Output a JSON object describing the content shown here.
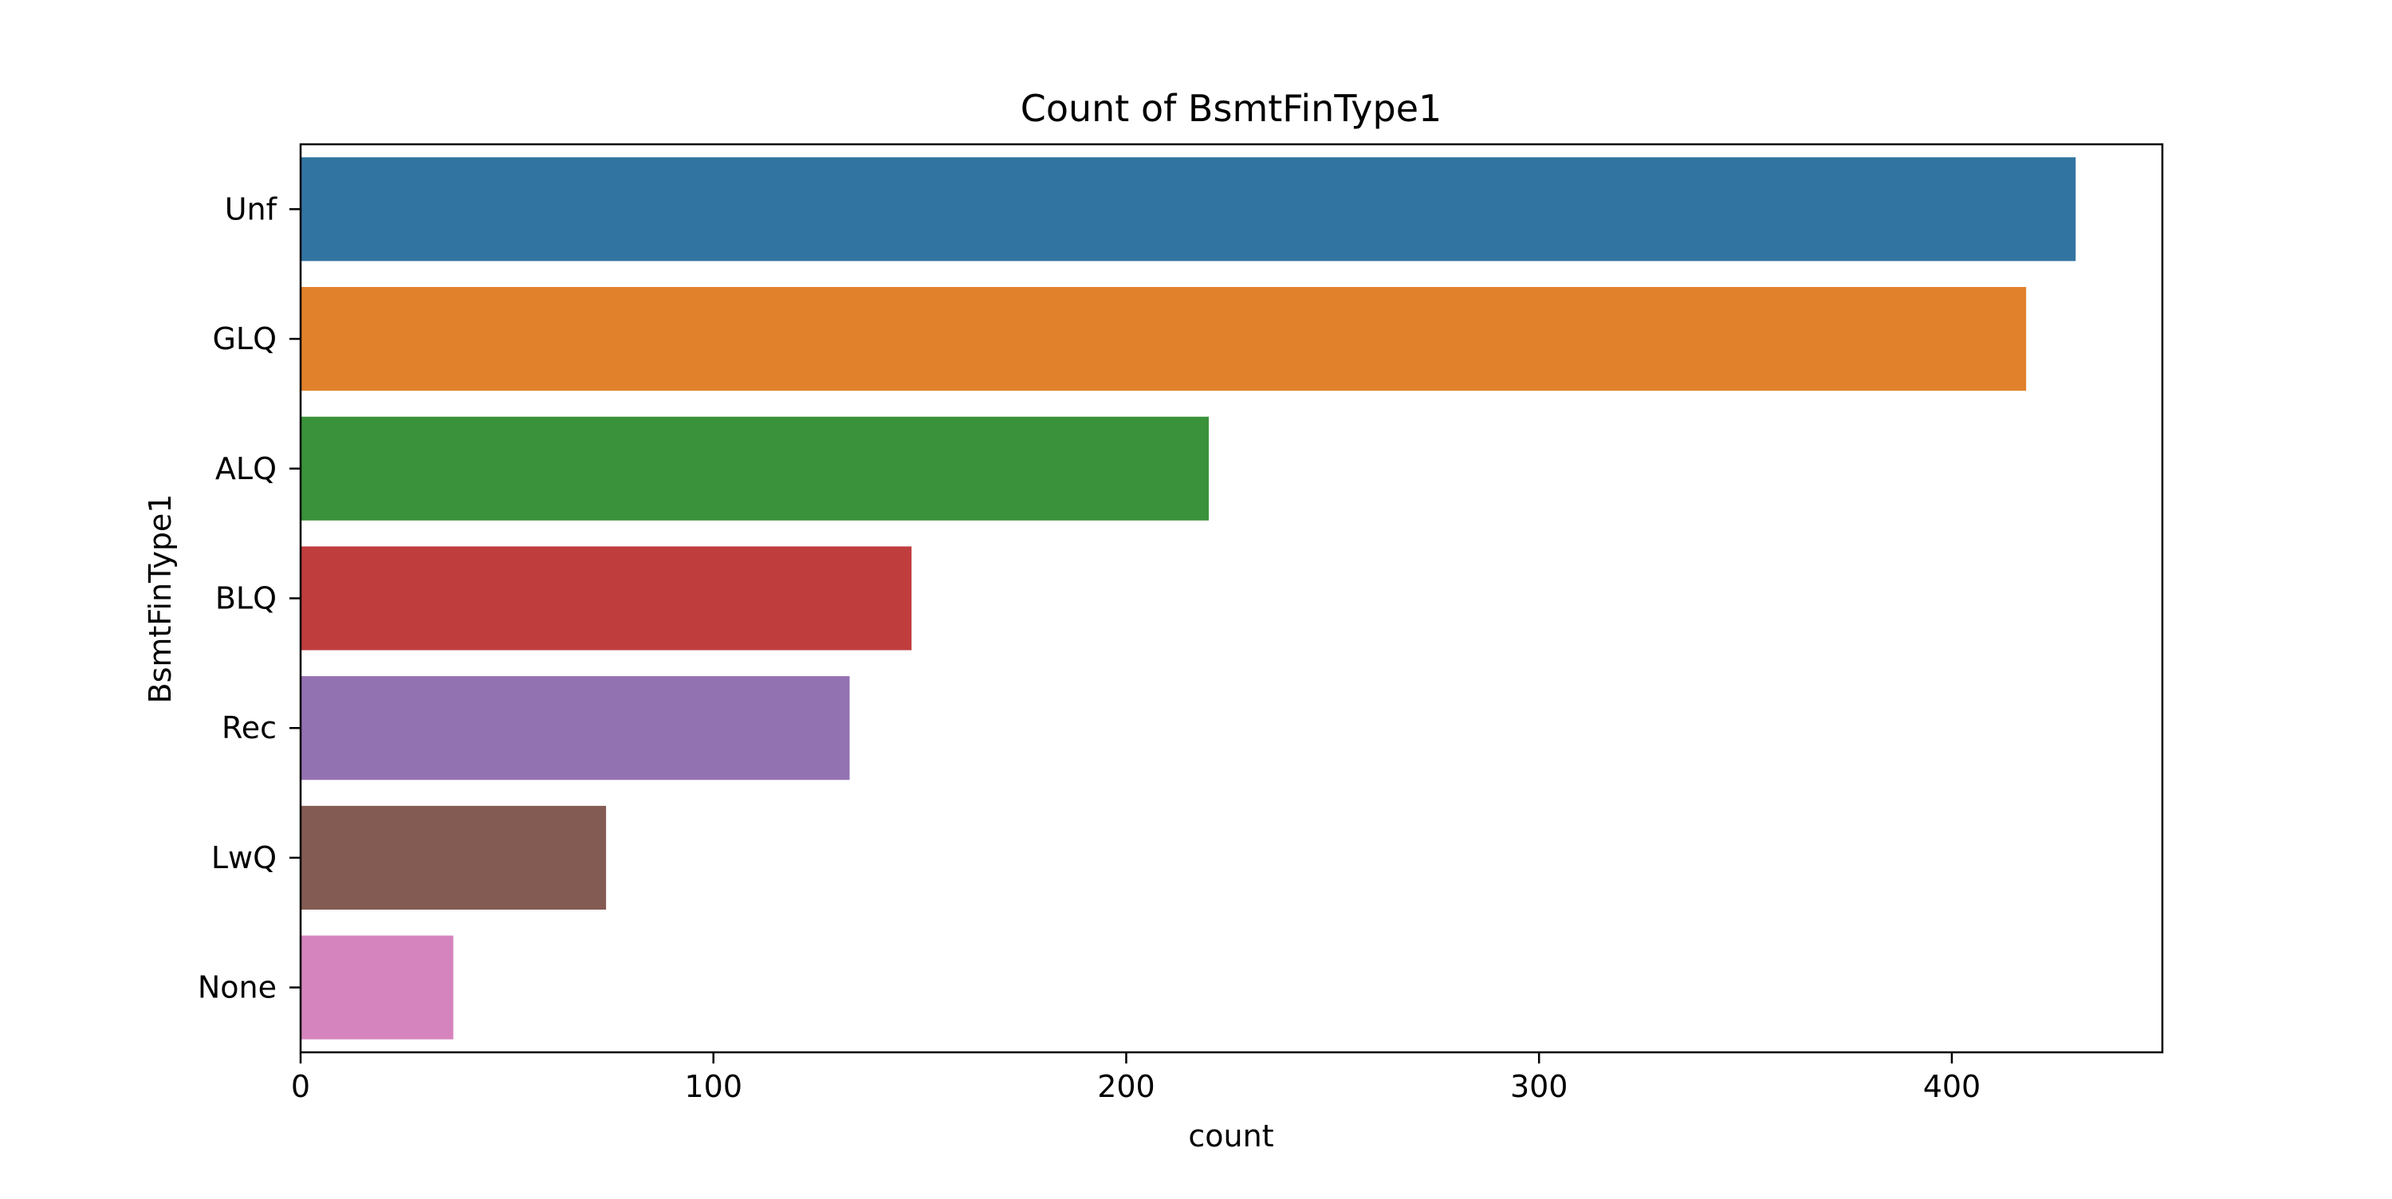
{
  "chart_data": {
    "type": "bar",
    "orientation": "horizontal",
    "title": "Count of BsmtFinType1",
    "xlabel": "count",
    "ylabel": "BsmtFinType1",
    "categories": [
      "Unf",
      "GLQ",
      "ALQ",
      "BLQ",
      "Rec",
      "LwQ",
      "None"
    ],
    "values": [
      430,
      418,
      220,
      148,
      133,
      74,
      37
    ],
    "colors": [
      "#3274a1",
      "#e1812c",
      "#3a923a",
      "#c03d3e",
      "#9372b2",
      "#845b53",
      "#d684bd"
    ],
    "xlim": [
      0,
      451
    ],
    "xticks": [
      0,
      100,
      200,
      300,
      400
    ],
    "xtick_labels": [
      "0",
      "100",
      "200",
      "300",
      "400"
    ],
    "grid": false,
    "legend": "none"
  }
}
